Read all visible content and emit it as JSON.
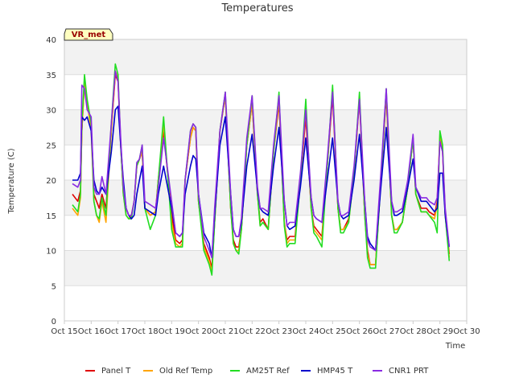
{
  "chart_data": {
    "type": "line",
    "title": "Temperatures",
    "xlabel": "Time",
    "ylabel": "Temperature (C)",
    "station_tag": "VR_met",
    "xlim": [
      15,
      30
    ],
    "ylim": [
      0,
      40
    ],
    "x_ticks": [
      15,
      16,
      17,
      18,
      19,
      20,
      21,
      22,
      23,
      24,
      25,
      26,
      27,
      28,
      29,
      30
    ],
    "x_tick_labels": [
      "Oct 15",
      "Oct 16",
      "Oct 17",
      "Oct 18",
      "Oct 19",
      "Oct 20",
      "Oct 21",
      "Oct 22",
      "Oct 23",
      "Oct 24",
      "Oct 25",
      "Oct 26",
      "Oct 27",
      "Oct 28",
      "Oct 29",
      "Oct 30"
    ],
    "y_ticks": [
      0,
      5,
      10,
      15,
      20,
      25,
      30,
      35,
      40
    ],
    "y_tick_labels": [
      "0",
      "5",
      "10",
      "15",
      "20",
      "25",
      "30",
      "35",
      "40"
    ],
    "grid": true,
    "legend_position": "bottom",
    "x": [
      15.3,
      15.5,
      15.6,
      15.65,
      15.75,
      15.85,
      16.0,
      16.1,
      16.2,
      16.3,
      16.4,
      16.55,
      16.75,
      16.9,
      17.0,
      17.1,
      17.2,
      17.3,
      17.4,
      17.5,
      17.6,
      17.7,
      17.8,
      17.9,
      18.0,
      18.2,
      18.4,
      18.5,
      18.7,
      19.0,
      19.15,
      19.3,
      19.4,
      19.5,
      19.7,
      19.8,
      19.9,
      20.0,
      20.2,
      20.4,
      20.5,
      20.6,
      20.8,
      21.0,
      21.2,
      21.3,
      21.4,
      21.5,
      21.6,
      21.8,
      22.0,
      22.2,
      22.3,
      22.4,
      22.6,
      22.8,
      23.0,
      23.2,
      23.3,
      23.4,
      23.6,
      23.8,
      24.0,
      24.2,
      24.3,
      24.4,
      24.6,
      24.8,
      25.0,
      25.2,
      25.3,
      25.4,
      25.6,
      25.8,
      26.0,
      26.2,
      26.3,
      26.4,
      26.6,
      26.8,
      27.0,
      27.2,
      27.3,
      27.4,
      27.6,
      27.8,
      28.0,
      28.1,
      28.3,
      28.5,
      28.6,
      28.8,
      28.9,
      29.0,
      29.1,
      29.2,
      29.35
    ],
    "series": [
      {
        "name": "Panel T",
        "color": "#e00000",
        "values": [
          18,
          17,
          18.5,
          27,
          34,
          31,
          28,
          18,
          17,
          16,
          18,
          16,
          27,
          35,
          34,
          25,
          18,
          16,
          15,
          15,
          17,
          22,
          23,
          24,
          16,
          15,
          15.5,
          20,
          27,
          15,
          11.5,
          11,
          11.5,
          20,
          26,
          27.5,
          27,
          17,
          11,
          9,
          7.5,
          14,
          27,
          32,
          16,
          11.5,
          10.5,
          10.5,
          13,
          25,
          31,
          18,
          14,
          14.5,
          13,
          24,
          31,
          14,
          11.5,
          12,
          12,
          20,
          29,
          16,
          13.5,
          13,
          12,
          22,
          32,
          16,
          13,
          13,
          14.5,
          21,
          31.5,
          15,
          10,
          8,
          8,
          20,
          32,
          15,
          13,
          13,
          14,
          19,
          26,
          18,
          16,
          16,
          15.5,
          15,
          17,
          26,
          24,
          15,
          9.5
        ]
      },
      {
        "name": "Old Ref Temp",
        "color": "#ffa500",
        "values": [
          16,
          15,
          17.5,
          27,
          34,
          31,
          27,
          17,
          15,
          14,
          17,
          14,
          27,
          35.5,
          34.5,
          25,
          18,
          15,
          14.5,
          15,
          17,
          22,
          23,
          24,
          16,
          15,
          15.5,
          20,
          28,
          14,
          11,
          10.5,
          11,
          20,
          26,
          27.5,
          27,
          17,
          10.5,
          8.5,
          7,
          14,
          27,
          32,
          16,
          11,
          10,
          10,
          13,
          25,
          31,
          18,
          13.5,
          14,
          13,
          24,
          31.5,
          14,
          11,
          11.5,
          11.5,
          20,
          30,
          16,
          13,
          12.5,
          11.5,
          22,
          33,
          16,
          13,
          13,
          14,
          21,
          32,
          15,
          9.5,
          8,
          8,
          20,
          32.5,
          15,
          13,
          13,
          14,
          19,
          26,
          18,
          15.5,
          15.5,
          15,
          14.5,
          16.5,
          26.5,
          24.5,
          15,
          9
        ]
      },
      {
        "name": "AM25T Ref",
        "color": "#22dd22",
        "values": [
          16.5,
          15.5,
          18,
          28,
          35,
          31.5,
          28,
          17,
          15,
          14.5,
          17.5,
          15,
          28,
          36.5,
          35,
          25,
          18,
          15,
          14.5,
          14.5,
          17,
          22,
          23,
          25,
          16,
          13,
          15,
          20,
          29,
          13,
          10.5,
          10.5,
          10.5,
          20,
          27,
          28,
          27.5,
          17,
          10,
          8,
          6.5,
          14,
          27,
          32.5,
          16,
          11,
          10,
          9.5,
          13,
          25,
          32,
          18,
          13.5,
          14,
          13,
          24,
          32.5,
          13.5,
          10.5,
          11,
          11,
          20,
          31.5,
          16,
          12.5,
          12,
          10.5,
          22,
          33.5,
          16,
          12.5,
          12.5,
          14,
          21,
          32.5,
          15,
          9,
          7.5,
          7.5,
          20,
          33,
          15,
          12.5,
          12.5,
          14,
          19,
          26,
          18,
          15.5,
          15.5,
          15,
          14,
          12.5,
          27,
          25,
          15,
          8.5
        ]
      },
      {
        "name": "HMP45 T",
        "color": "#0000cc",
        "values": [
          20,
          20,
          21,
          29,
          28.5,
          29,
          27,
          20,
          18.5,
          18,
          19,
          18,
          24,
          30,
          30.5,
          25,
          20,
          16,
          15,
          14.5,
          15,
          18,
          20,
          22,
          16,
          15.5,
          15,
          18,
          22,
          16,
          12.5,
          12,
          12.5,
          18,
          22,
          23.5,
          23,
          18,
          12.5,
          11,
          9,
          15,
          25,
          29,
          18,
          13,
          12,
          12,
          14,
          22,
          26.5,
          18.5,
          16,
          15.5,
          15,
          22,
          27.5,
          17,
          13.5,
          13,
          13.5,
          19,
          26,
          17.5,
          15,
          14.5,
          14,
          20,
          26,
          17,
          15,
          14.5,
          15,
          20,
          26.5,
          17,
          12,
          11,
          10,
          19,
          27.5,
          17,
          15,
          15,
          15.5,
          19,
          23,
          19,
          17,
          17,
          16.5,
          15.5,
          16,
          21,
          21,
          15,
          10.5
        ]
      },
      {
        "name": "CNR1 PRT",
        "color": "#8a2be2",
        "values": [
          19.5,
          19,
          20,
          33.5,
          33,
          30,
          29,
          19,
          18,
          18,
          20.5,
          18,
          28,
          35.5,
          34,
          26,
          19,
          16,
          15,
          15,
          17,
          22.5,
          23,
          25,
          17,
          16.5,
          16,
          19,
          26,
          17,
          12.5,
          12,
          12.5,
          20,
          27,
          28,
          27.5,
          18,
          12,
          10,
          9,
          16,
          27,
          32.5,
          18,
          13,
          12,
          12,
          14.5,
          26,
          32,
          19,
          16,
          16,
          15.5,
          25,
          32,
          17,
          13.5,
          14,
          14,
          21,
          30,
          17.5,
          15,
          14.5,
          14,
          23,
          32.5,
          17,
          15,
          15,
          15.5,
          22,
          31.5,
          17,
          11.5,
          10.5,
          10,
          21,
          33,
          17,
          15.5,
          15.5,
          16,
          20,
          26.5,
          19,
          17.5,
          17.5,
          17,
          16.5,
          17.5,
          25.5,
          24,
          16,
          10.5
        ]
      }
    ]
  }
}
